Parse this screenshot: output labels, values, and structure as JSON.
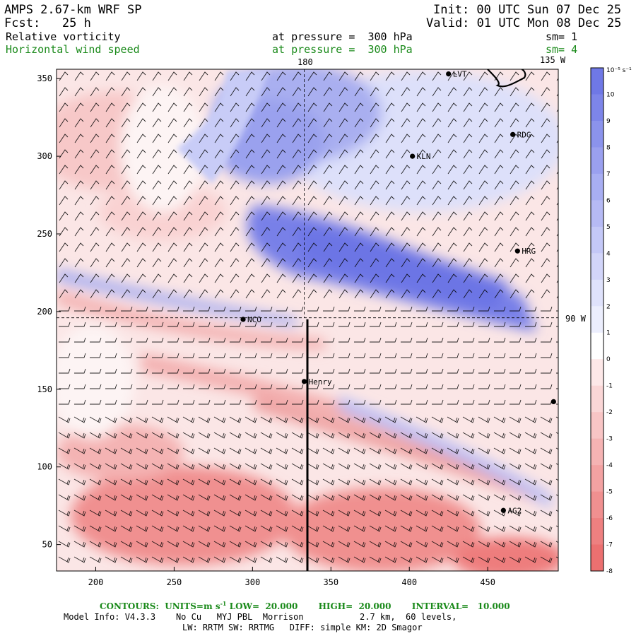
{
  "header": {
    "title": "AMPS 2.67-km WRF SP",
    "init": "Init: 00 UTC Sun 07 Dec 25",
    "fcst": "Fcst:   25 h",
    "valid": "Valid: 01 UTC Mon 08 Dec 25"
  },
  "fields": [
    {
      "name": "Relative vorticity",
      "level": "at pressure =  300 hPa",
      "sm": "sm= 1",
      "color": "#000000"
    },
    {
      "name": "Horizontal wind speed",
      "level": "at pressure =  300 hPa",
      "sm": "sm= 4",
      "color": "#1a8a1a"
    }
  ],
  "map": {
    "top_label_180": "180",
    "top_label_135w": "135 W",
    "right_label_90w": "90 W",
    "x_ticks": [
      "200",
      "250",
      "300",
      "350",
      "400",
      "450"
    ],
    "y_ticks": [
      "50",
      "100",
      "150",
      "200",
      "250",
      "300",
      "350"
    ],
    "x_range": [
      175,
      495
    ],
    "y_range": [
      33,
      356
    ],
    "stations": [
      {
        "name": "LVT",
        "x": 425,
        "y": 353
      },
      {
        "name": "RDG",
        "x": 466,
        "y": 314
      },
      {
        "name": "KLN",
        "x": 402,
        "y": 300
      },
      {
        "name": "HRG",
        "x": 469,
        "y": 239
      },
      {
        "name": "NCO",
        "x": 294,
        "y": 195
      },
      {
        "name": "Henry",
        "x": 333,
        "y": 155
      },
      {
        "name": "",
        "x": 492,
        "y": 142
      },
      {
        "name": "AG2",
        "x": 460,
        "y": 72
      }
    ],
    "cross_section_x": 335,
    "cross_section_y": [
      33,
      195
    ],
    "guide_x": 333,
    "guide_y": 196
  },
  "colorbar": {
    "unit": "10⁻⁵ s⁻¹",
    "levels": [
      "10",
      "9",
      "8",
      "7",
      "6",
      "5",
      "4",
      "3",
      "2",
      "1",
      "0",
      "-1",
      "-2",
      "-3",
      "-4",
      "-5",
      "-6",
      "-7",
      "-8"
    ],
    "colors": [
      "#6f78e6",
      "#7d85e9",
      "#8b93ec",
      "#9aa0ef",
      "#a8aef2",
      "#b6baf4",
      "#c4c8f7",
      "#d2d5f9",
      "#dfe2fb",
      "#eceefd",
      "#ffffff",
      "#fde8e8",
      "#fad6d6",
      "#f8c5c5",
      "#f5b3b3",
      "#f3a2a2",
      "#f09090",
      "#ee8080",
      "#ec7070"
    ]
  },
  "footer": {
    "contours_label": "CONTOURS:  UNITS=m s",
    "contours_exp": "-1",
    "contours_rest": " LOW=  20.000       HIGH=  20.000       INTERVAL=   10.000",
    "model_info": "Model Info: V4.3.3    No Cu   MYJ PBL  Morrison           2.7 km,  60 levels,",
    "model_info2": "LW: RRTM SW: RRTMG   DIFF: simple KM: 2D Smagor"
  }
}
